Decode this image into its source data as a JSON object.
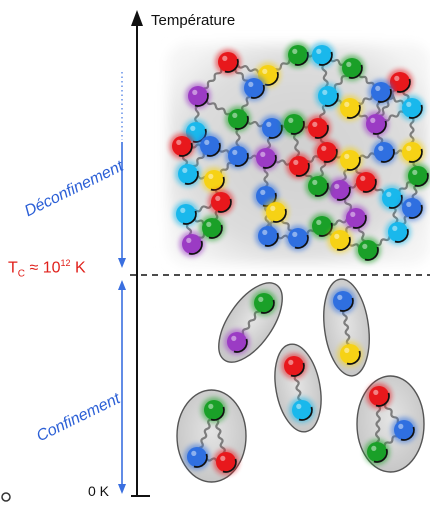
{
  "axis": {
    "title": "Température",
    "bottom_label": "0 K",
    "critical": {
      "base": "T",
      "sub": "C",
      "approx": " ≈ 10",
      "exp": "12",
      "unit": " K"
    }
  },
  "regions": {
    "upper_label": "Déconfinement",
    "lower_label": "Confinement"
  },
  "colors": {
    "red": "#e8181c",
    "green": "#1aa028",
    "blue": "#2f6fe0",
    "cyan": "#19b8ec",
    "yellow": "#f6d215",
    "purple": "#9b3bc4",
    "axis_blue": "#2b5fd6",
    "critical_red": "#e0201b"
  },
  "quarks": [
    [
      "purple",
      198,
      96
    ],
    [
      "red",
      228,
      62
    ],
    [
      "yellow",
      268,
      75
    ],
    [
      "green",
      298,
      55
    ],
    [
      "cyan",
      322,
      55
    ],
    [
      "green",
      352,
      68
    ],
    [
      "red",
      400,
      82
    ],
    [
      "cyan",
      196,
      132
    ],
    [
      "blue",
      254,
      88
    ],
    [
      "yellow",
      350,
      108
    ],
    [
      "blue",
      381,
      92
    ],
    [
      "cyan",
      412,
      108
    ],
    [
      "green",
      238,
      119
    ],
    [
      "blue",
      272,
      128
    ],
    [
      "red",
      182,
      146
    ],
    [
      "blue",
      210,
      146
    ],
    [
      "green",
      294,
      124
    ],
    [
      "purple",
      376,
      124
    ],
    [
      "cyan",
      328,
      96
    ],
    [
      "red",
      318,
      128
    ],
    [
      "blue",
      238,
      156
    ],
    [
      "purple",
      266,
      158
    ],
    [
      "red",
      299,
      166
    ],
    [
      "red",
      327,
      152
    ],
    [
      "yellow",
      350,
      160
    ],
    [
      "blue",
      384,
      152
    ],
    [
      "yellow",
      412,
      152
    ],
    [
      "cyan",
      188,
      174
    ],
    [
      "yellow",
      214,
      180
    ],
    [
      "blue",
      266,
      196
    ],
    [
      "purple",
      340,
      190
    ],
    [
      "red",
      366,
      182
    ],
    [
      "green",
      418,
      176
    ],
    [
      "cyan",
      186,
      214
    ],
    [
      "red",
      221,
      202
    ],
    [
      "yellow",
      276,
      212
    ],
    [
      "green",
      318,
      186
    ],
    [
      "green",
      322,
      226
    ],
    [
      "purple",
      356,
      218
    ],
    [
      "cyan",
      392,
      198
    ],
    [
      "blue",
      412,
      208
    ],
    [
      "purple",
      192,
      244
    ],
    [
      "green",
      212,
      228
    ],
    [
      "blue",
      268,
      236
    ],
    [
      "blue",
      298,
      238
    ],
    [
      "yellow",
      340,
      240
    ],
    [
      "green",
      368,
      250
    ],
    [
      "cyan",
      398,
      232
    ]
  ],
  "hadrons": [
    {
      "name": "hadron-meson-1",
      "quarks": [
        [
          "green",
          264,
          303
        ],
        [
          "purple",
          237,
          342
        ]
      ]
    },
    {
      "name": "hadron-meson-2",
      "quarks": [
        [
          "blue",
          343,
          301
        ],
        [
          "yellow",
          350,
          354
        ]
      ]
    },
    {
      "name": "hadron-meson-3",
      "quarks": [
        [
          "red",
          294,
          366
        ],
        [
          "cyan",
          302,
          410
        ]
      ]
    },
    {
      "name": "hadron-baryon-1",
      "quarks": [
        [
          "green",
          214,
          410
        ],
        [
          "blue",
          197,
          457
        ],
        [
          "red",
          226,
          462
        ]
      ]
    },
    {
      "name": "hadron-baryon-2",
      "quarks": [
        [
          "red",
          379,
          396
        ],
        [
          "blue",
          404,
          430
        ],
        [
          "green",
          377,
          452
        ]
      ]
    }
  ]
}
